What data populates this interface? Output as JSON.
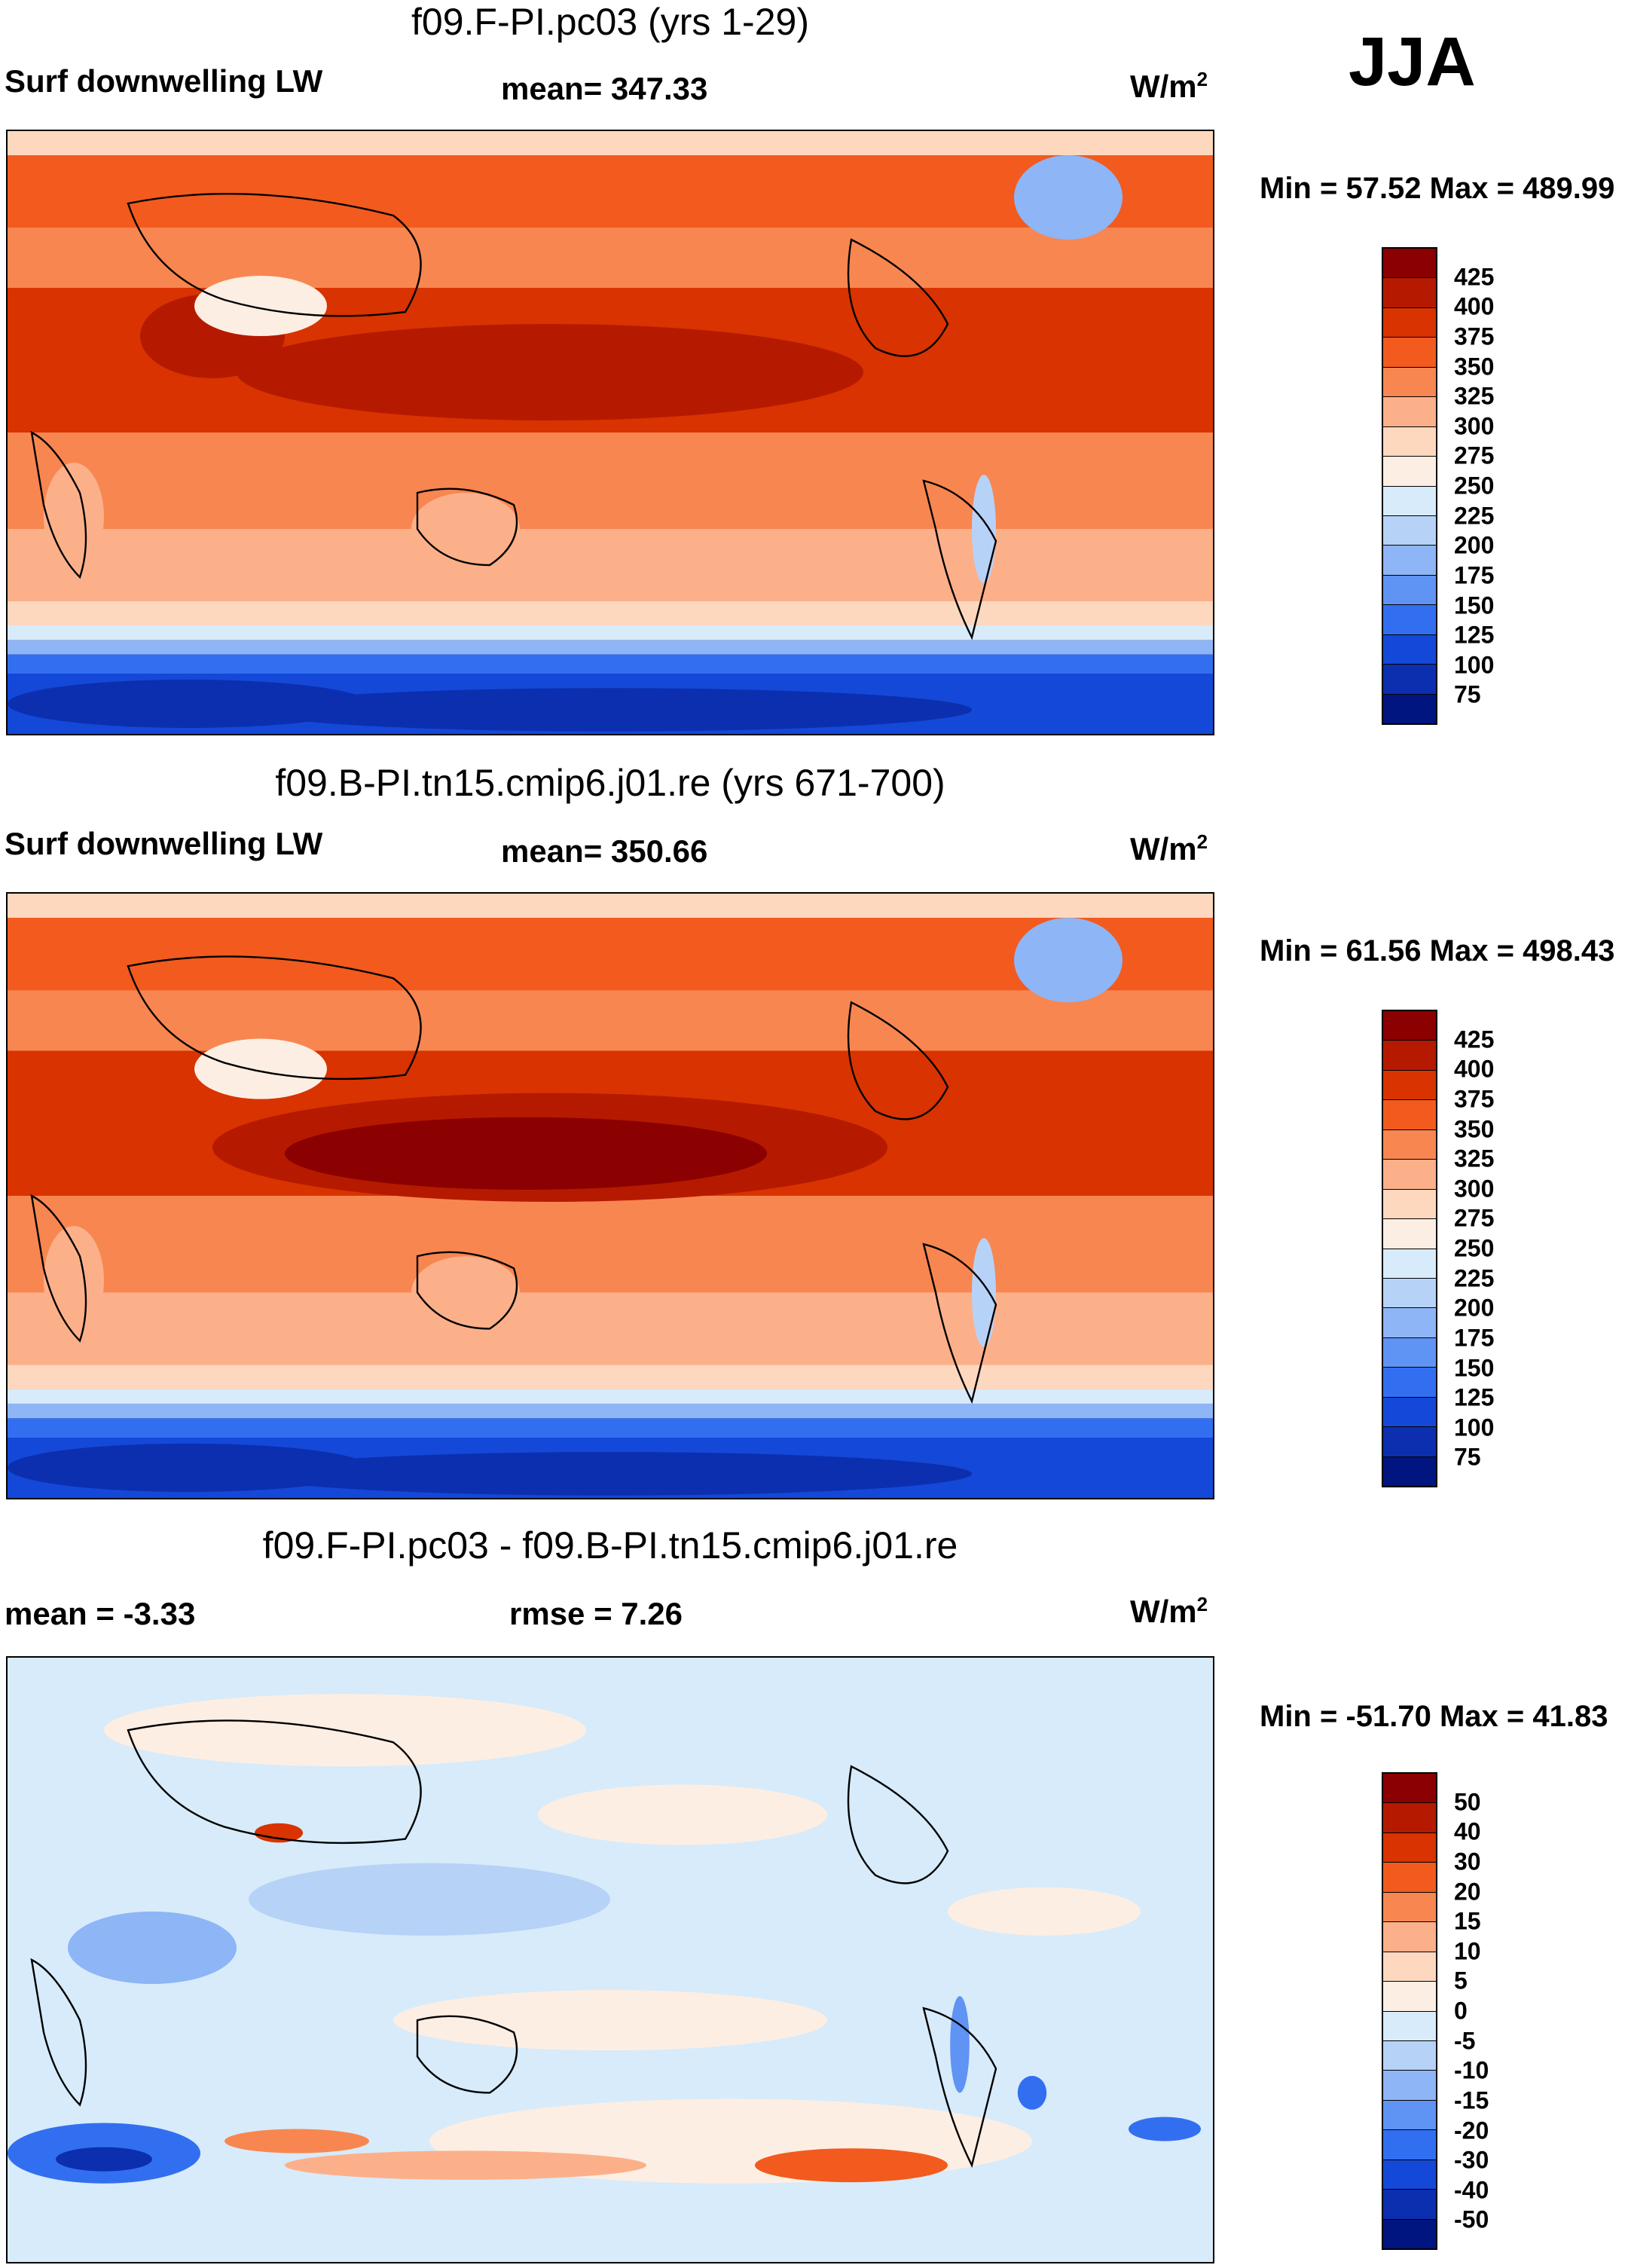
{
  "season": "JJA",
  "panels": [
    {
      "title": "f09.F-PI.pc03 (yrs 1-29)",
      "left_label": "Surf downwelling LW",
      "center_label": "mean= 347.33",
      "units_base": "W/m",
      "units_exp": "2",
      "minmax": "Min =  57.52 Max = 489.99",
      "type": "absolute",
      "colorbar": {
        "colors": [
          "#8b0000",
          "#b51a00",
          "#d83300",
          "#f25a1e",
          "#f88650",
          "#fcb08a",
          "#fdd8bf",
          "#fdeee3",
          "#d7ebfa",
          "#b7d2f7",
          "#8eb5f5",
          "#5f93f4",
          "#326ff0",
          "#1448d8",
          "#0b2fae",
          "#00157f"
        ],
        "ticks": [
          "425",
          "400",
          "375",
          "350",
          "325",
          "300",
          "275",
          "250",
          "225",
          "200",
          "175",
          "150",
          "125",
          "100",
          "75"
        ]
      }
    },
    {
      "title": "f09.B-PI.tn15.cmip6.j01.re (yrs 671-700)",
      "left_label": "Surf downwelling LW",
      "center_label": "mean= 350.66",
      "units_base": "W/m",
      "units_exp": "2",
      "minmax": "Min =  61.56 Max = 498.43",
      "type": "absolute",
      "colorbar": {
        "colors": [
          "#8b0000",
          "#b51a00",
          "#d83300",
          "#f25a1e",
          "#f88650",
          "#fcb08a",
          "#fdd8bf",
          "#fdeee3",
          "#d7ebfa",
          "#b7d2f7",
          "#8eb5f5",
          "#5f93f4",
          "#326ff0",
          "#1448d8",
          "#0b2fae",
          "#00157f"
        ],
        "ticks": [
          "425",
          "400",
          "375",
          "350",
          "325",
          "300",
          "275",
          "250",
          "225",
          "200",
          "175",
          "150",
          "125",
          "100",
          "75"
        ]
      }
    },
    {
      "title": "f09.F-PI.pc03 - f09.B-PI.tn15.cmip6.j01.re",
      "left_label": "mean =  -3.33",
      "center_label": "rmse =    7.26",
      "units_base": "W/m",
      "units_exp": "2",
      "minmax": "Min = -51.70 Max =  41.83",
      "type": "difference",
      "colorbar": {
        "colors": [
          "#8b0000",
          "#b51a00",
          "#d83300",
          "#f25a1e",
          "#f88650",
          "#fcb08a",
          "#fdd8bf",
          "#fdeee3",
          "#d7ebfa",
          "#b7d2f7",
          "#8eb5f5",
          "#5f93f4",
          "#326ff0",
          "#1448d8",
          "#0b2fae",
          "#00157f"
        ],
        "ticks": [
          "50",
          "40",
          "30",
          "20",
          "15",
          "10",
          "5",
          "0",
          "-5",
          "-10",
          "-15",
          "-20",
          "-30",
          "-40",
          "-50"
        ]
      }
    }
  ]
}
